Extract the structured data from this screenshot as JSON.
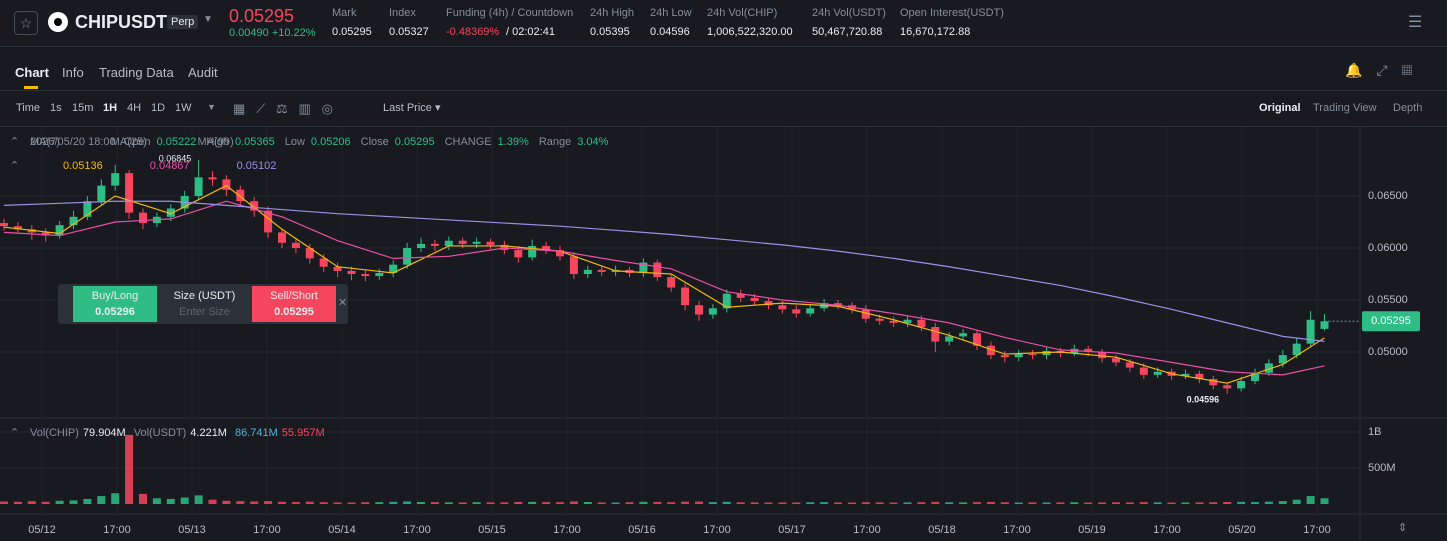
{
  "header": {
    "symbol": "CHIPUSDT",
    "badge": "Perp",
    "price": "0.05295",
    "change": "0.00490 +10.22%",
    "stats": [
      {
        "label": "Mark",
        "value": "0.05295"
      },
      {
        "label": "Index",
        "value": "0.05327"
      },
      {
        "label": "Funding (4h) / Countdown",
        "value": "-0.48369%",
        "extra": "/ 02:02:41"
      },
      {
        "label": "24h High",
        "value": "0.05395"
      },
      {
        "label": "24h Low",
        "value": "0.04596"
      },
      {
        "label": "24h Vol(CHIP)",
        "value": "1,006,522,320.00"
      },
      {
        "label": "24h Vol(USDT)",
        "value": "50,467,720.88"
      },
      {
        "label": "Open Interest(USDT)",
        "value": "16,670,172.88"
      }
    ]
  },
  "tabs": [
    "Chart",
    "Info",
    "Trading Data",
    "Audit"
  ],
  "toolbar": {
    "intervals": [
      "Time",
      "1s",
      "15m",
      "1H",
      "4H",
      "1D",
      "1W"
    ],
    "price_mode": "Last Price",
    "views": [
      "Original",
      "Trading View",
      "Depth"
    ]
  },
  "order_panel": {
    "buy": "Buy/Long",
    "buy_price": "0.05296",
    "size": "Size (USDT)",
    "size_hint": "Enter Size",
    "sell": "Sell/Short",
    "sell_price": "0.05295"
  },
  "chart_data": {
    "type": "candlestick",
    "up_color": "#2ebd85",
    "down_color": "#f6465d",
    "info": {
      "date": "2026/05/20 18:00",
      "open": "Open",
      "high": "High",
      "low": "Low",
      "close": "Close",
      "change_label": "CHANGE",
      "change": "1.39%",
      "range_label": "Range",
      "range": "3.04%"
    },
    "open": [
      0.0624,
      0.0621,
      0.0618,
      0.0615,
      0.0612,
      0.0622,
      0.063,
      0.0645,
      0.066,
      0.0672,
      0.0634,
      0.0624,
      0.063,
      0.0638,
      0.065,
      0.0668,
      0.0666,
      0.0656,
      0.0645,
      0.0636,
      0.0615,
      0.0605,
      0.06,
      0.059,
      0.0582,
      0.0578,
      0.0575,
      0.0573,
      0.0576,
      0.0584,
      0.06,
      0.0604,
      0.0602,
      0.0607,
      0.0604,
      0.0606,
      0.0603,
      0.0598,
      0.0591,
      0.0602,
      0.0598,
      0.0592,
      0.0575,
      0.0579,
      0.0577,
      0.0579,
      0.0576,
      0.0586,
      0.0572,
      0.0562,
      0.0545,
      0.0536,
      0.0542,
      0.0556,
      0.0552,
      0.0549,
      0.0545,
      0.0541,
      0.0537,
      0.0542,
      0.0547,
      0.0545,
      0.0541,
      0.0532,
      0.053,
      0.0528,
      0.0531,
      0.0524,
      0.051,
      0.0515,
      0.0518,
      0.0506,
      0.0497,
      0.0495,
      0.0498,
      0.0497,
      0.0501,
      0.0499,
      0.0503,
      0.05,
      0.0494,
      0.049,
      0.0485,
      0.0478,
      0.0481,
      0.0477,
      0.0479,
      0.0474,
      0.0468,
      0.0465,
      0.0472,
      0.048,
      0.0489,
      0.0497,
      0.0508,
      0.05222
    ],
    "high": [
      0.0628,
      0.0625,
      0.0622,
      0.0619,
      0.0626,
      0.0636,
      0.065,
      0.0666,
      0.068,
      0.0675,
      0.0638,
      0.0634,
      0.0642,
      0.0655,
      0.06845,
      0.0674,
      0.067,
      0.066,
      0.0649,
      0.064,
      0.0619,
      0.061,
      0.0604,
      0.0594,
      0.0586,
      0.0582,
      0.0579,
      0.058,
      0.0588,
      0.0605,
      0.061,
      0.0608,
      0.0611,
      0.061,
      0.061,
      0.0609,
      0.0607,
      0.0602,
      0.0608,
      0.0606,
      0.0602,
      0.0596,
      0.0583,
      0.0582,
      0.0583,
      0.0582,
      0.059,
      0.0589,
      0.0575,
      0.0566,
      0.0549,
      0.0546,
      0.056,
      0.056,
      0.0556,
      0.0552,
      0.0549,
      0.0545,
      0.0546,
      0.0551,
      0.055,
      0.0548,
      0.0545,
      0.0536,
      0.0534,
      0.0535,
      0.0535,
      0.0528,
      0.0519,
      0.0522,
      0.0521,
      0.051,
      0.0501,
      0.0502,
      0.0502,
      0.0505,
      0.0504,
      0.0507,
      0.0506,
      0.0503,
      0.0497,
      0.0493,
      0.0489,
      0.0485,
      0.0484,
      0.0483,
      0.0482,
      0.0477,
      0.0471,
      0.0476,
      0.0484,
      0.0493,
      0.0502,
      0.0513,
      0.05395,
      0.05365
    ],
    "low": [
      0.0617,
      0.0614,
      0.0608,
      0.0606,
      0.0609,
      0.0618,
      0.0627,
      0.0641,
      0.0655,
      0.0628,
      0.0618,
      0.062,
      0.0626,
      0.0634,
      0.0646,
      0.066,
      0.065,
      0.064,
      0.063,
      0.061,
      0.06,
      0.0595,
      0.0585,
      0.0577,
      0.0572,
      0.0569,
      0.0568,
      0.0569,
      0.0572,
      0.058,
      0.0596,
      0.0597,
      0.0598,
      0.06,
      0.06,
      0.0599,
      0.0594,
      0.0586,
      0.0588,
      0.0594,
      0.0588,
      0.057,
      0.0571,
      0.0573,
      0.0573,
      0.0572,
      0.0572,
      0.0568,
      0.0558,
      0.054,
      0.053,
      0.0532,
      0.0538,
      0.0548,
      0.0545,
      0.0541,
      0.0537,
      0.0533,
      0.0534,
      0.0539,
      0.0541,
      0.0537,
      0.0528,
      0.0526,
      0.0524,
      0.0524,
      0.052,
      0.05,
      0.0506,
      0.0511,
      0.0502,
      0.0493,
      0.049,
      0.0491,
      0.0493,
      0.0493,
      0.0495,
      0.0496,
      0.0496,
      0.049,
      0.0486,
      0.0481,
      0.0474,
      0.0475,
      0.0473,
      0.0474,
      0.047,
      0.0464,
      0.04596,
      0.0462,
      0.0469,
      0.0477,
      0.0485,
      0.0494,
      0.0505,
      0.05206
    ],
    "close": [
      0.0621,
      0.0618,
      0.0615,
      0.0612,
      0.0622,
      0.063,
      0.0645,
      0.066,
      0.0672,
      0.0634,
      0.0624,
      0.063,
      0.0638,
      0.065,
      0.0668,
      0.0666,
      0.0656,
      0.0645,
      0.0636,
      0.0615,
      0.0605,
      0.06,
      0.059,
      0.0582,
      0.0578,
      0.0575,
      0.0573,
      0.0576,
      0.0584,
      0.06,
      0.0604,
      0.0602,
      0.0607,
      0.0604,
      0.0606,
      0.0603,
      0.0598,
      0.0591,
      0.0602,
      0.0598,
      0.0592,
      0.0575,
      0.0579,
      0.0577,
      0.0579,
      0.0576,
      0.0586,
      0.0572,
      0.0562,
      0.0545,
      0.0536,
      0.0542,
      0.0556,
      0.0552,
      0.0549,
      0.0545,
      0.0541,
      0.0537,
      0.0542,
      0.0547,
      0.0545,
      0.0541,
      0.0532,
      0.053,
      0.0528,
      0.0531,
      0.0524,
      0.051,
      0.0515,
      0.0518,
      0.0506,
      0.0497,
      0.0495,
      0.0498,
      0.0497,
      0.0501,
      0.0499,
      0.0503,
      0.05,
      0.0494,
      0.049,
      0.0485,
      0.0478,
      0.0481,
      0.0477,
      0.0479,
      0.0474,
      0.0468,
      0.0465,
      0.0472,
      0.048,
      0.0489,
      0.0497,
      0.0508,
      0.0531,
      0.05295
    ],
    "ylim": [
      0.04365,
      0.07135
    ],
    "yticks": [
      {
        "value": 0.05,
        "label": "0.05000"
      },
      {
        "value": 0.055,
        "label": "0.05500"
      },
      {
        "value": 0.06,
        "label": "0.06000"
      },
      {
        "value": 0.065,
        "label": "0.06500"
      }
    ],
    "x_labels": [
      "05/12",
      "17:00",
      "05/13",
      "17:00",
      "05/14",
      "17:00",
      "05/15",
      "17:00",
      "05/16",
      "17:00",
      "05/17",
      "17:00",
      "05/18",
      "17:00",
      "05/19",
      "17:00",
      "05/20",
      "17:00"
    ],
    "ma_index": [
      0,
      4,
      8,
      12,
      16,
      20,
      24,
      28,
      32,
      36,
      40,
      44,
      48,
      52,
      56,
      60,
      64,
      68,
      72,
      76,
      80,
      84,
      88,
      92,
      95
    ],
    "series": [
      {
        "name": "MA(7)",
        "color": "#f0b90b",
        "values": [
          0.062,
          0.0614,
          0.065,
          0.0633,
          0.066,
          0.0618,
          0.0582,
          0.0576,
          0.0602,
          0.0602,
          0.0597,
          0.0578,
          0.0575,
          0.0543,
          0.0547,
          0.0544,
          0.0531,
          0.0516,
          0.0498,
          0.05,
          0.0495,
          0.0479,
          0.047,
          0.0488,
          0.05136
        ]
      },
      {
        "name": "MA(25)",
        "color": "#e84fa8",
        "values": [
          0.0615,
          0.0612,
          0.0625,
          0.0628,
          0.0645,
          0.063,
          0.0607,
          0.059,
          0.0592,
          0.06,
          0.0597,
          0.0588,
          0.058,
          0.0558,
          0.055,
          0.0545,
          0.0537,
          0.0528,
          0.0514,
          0.0502,
          0.0499,
          0.049,
          0.0481,
          0.0478,
          0.04867
        ]
      },
      {
        "name": "MA(99)",
        "color": "#9b8fe8",
        "values": [
          0.0641,
          0.0643,
          0.0645,
          0.0645,
          0.0641,
          0.0637,
          0.0633,
          0.063,
          0.0627,
          0.0624,
          0.0621,
          0.0617,
          0.0613,
          0.0608,
          0.0603,
          0.0597,
          0.059,
          0.0582,
          0.0573,
          0.0564,
          0.0553,
          0.0541,
          0.0528,
          0.0515,
          0.05102
        ]
      }
    ],
    "volume": {
      "legend": [
        "Vol(CHIP)",
        "79.904M",
        "Vol(USDT)",
        "4.221M",
        "86.741M",
        "55.957M"
      ],
      "ylim": [
        0,
        1194000000
      ],
      "yticks": [
        {
          "value": 500000000,
          "label": "500M"
        },
        {
          "value": 1000000000,
          "label": "1B"
        }
      ],
      "values": [
        35000000,
        30000000,
        40000000,
        30000000,
        45000000,
        50000000,
        70000000,
        110000000,
        150000000,
        960000000,
        140000000,
        80000000,
        70000000,
        90000000,
        120000000,
        60000000,
        45000000,
        40000000,
        35000000,
        40000000,
        30000000,
        28000000,
        32000000,
        25000000,
        22000000,
        20000000,
        24000000,
        26000000,
        30000000,
        35000000,
        28000000,
        26000000,
        24000000,
        22000000,
        25000000,
        23000000,
        24000000,
        28000000,
        30000000,
        26000000,
        25000000,
        35000000,
        28000000,
        22000000,
        20000000,
        24000000,
        30000000,
        28000000,
        25000000,
        32000000,
        34000000,
        26000000,
        30000000,
        24000000,
        22000000,
        20000000,
        22000000,
        21000000,
        24000000,
        26000000,
        22000000,
        20000000,
        24000000,
        22000000,
        20000000,
        22000000,
        25000000,
        30000000,
        24000000,
        22000000,
        26000000,
        28000000,
        24000000,
        20000000,
        22000000,
        21000000,
        22000000,
        24000000,
        20000000,
        22000000,
        24000000,
        22000000,
        26000000,
        22000000,
        20000000,
        21000000,
        22000000,
        24000000,
        28000000,
        30000000,
        26000000,
        32000000,
        40000000,
        60000000,
        110000000,
        79904000
      ]
    }
  }
}
